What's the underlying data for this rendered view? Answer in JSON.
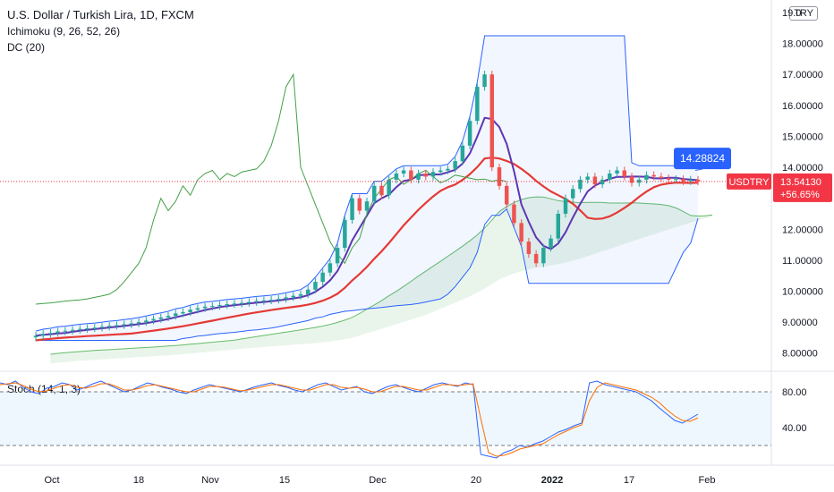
{
  "header": {
    "title": "U.S. Dollar / Turkish Lira, 1D, FXCM",
    "indicator1": "Ichimoku (9, 26, 52, 26)",
    "indicator2": "DC (20)",
    "currency_badge": "TRY"
  },
  "price_badges": {
    "symbol": "USDTRY",
    "last_price": "13.54130",
    "change_pct": "+56.65%",
    "callout_value": "14.28824",
    "symbol_color": "#f23645",
    "callout_color": "#2962ff"
  },
  "stoch": {
    "label": "Stoch (14, 1, 3)"
  },
  "chart_data": [
    {
      "type": "candlestick",
      "title": "U.S. Dollar / Turkish Lira, 1D, FXCM",
      "y_ticks": [
        "19.0",
        "18.00000",
        "17.00000",
        "16.00000",
        "15.00000",
        "14.00000",
        "12.00000",
        "11.00000",
        "10.00000",
        "9.00000",
        "8.00000"
      ],
      "ylim": [
        7.5,
        19.0
      ],
      "x_ticks": [
        "Oct",
        "18",
        "Nov",
        "15",
        "Dec",
        "20",
        "2022",
        "17",
        "Feb"
      ],
      "close": [
        8.56,
        8.62,
        8.65,
        8.7,
        8.72,
        8.75,
        8.78,
        8.8,
        8.82,
        8.85,
        8.88,
        8.9,
        8.93,
        8.96,
        9.0,
        9.05,
        9.1,
        9.15,
        9.2,
        9.28,
        9.32,
        9.4,
        9.45,
        9.5,
        9.52,
        9.55,
        9.58,
        9.6,
        9.62,
        9.65,
        9.68,
        9.7,
        9.72,
        9.75,
        9.8,
        9.85,
        9.9,
        10.05,
        10.3,
        10.6,
        10.9,
        11.4,
        12.3,
        13.0,
        12.6,
        12.9,
        13.4,
        13.1,
        13.6,
        13.8,
        13.9,
        13.6,
        13.8,
        13.7,
        13.85,
        13.9,
        13.95,
        14.2,
        14.7,
        15.5,
        16.6,
        17.0,
        14.0,
        13.4,
        12.8,
        12.2,
        11.6,
        11.2,
        10.9,
        11.4,
        11.7,
        12.5,
        13.0,
        13.3,
        13.6,
        13.7,
        13.45,
        13.6,
        13.8,
        13.9,
        13.7,
        13.5,
        13.6,
        13.75,
        13.7,
        13.65,
        13.6,
        13.62,
        13.55,
        13.6,
        13.54
      ],
      "donchian": {
        "upper": 18.25,
        "lower": 10.25
      },
      "last_price": 13.5413,
      "ichimoku_callout": 14.28824
    },
    {
      "type": "line",
      "title": "Stoch (14, 1, 3)",
      "y_ticks": [
        "80.00",
        "40.00"
      ],
      "bands": [
        20,
        80
      ],
      "ylim": [
        0,
        100
      ],
      "series": [
        {
          "values": [
            90,
            88,
            92,
            85,
            80,
            78,
            84,
            86,
            90,
            88,
            82,
            85,
            89,
            92,
            88,
            84,
            80,
            82,
            86,
            90,
            88,
            85,
            83,
            80,
            78,
            82,
            85,
            88,
            86,
            84,
            82,
            80,
            83,
            86,
            88,
            90,
            87,
            85,
            82,
            80,
            84,
            88,
            90,
            86,
            82,
            84,
            86,
            80,
            78,
            82,
            86,
            88,
            85,
            82,
            80,
            84,
            88,
            90,
            88,
            86,
            90,
            88,
            10,
            8,
            6,
            12,
            15,
            20,
            18,
            22,
            25,
            30,
            35,
            38,
            42,
            45,
            90,
            92,
            88,
            86,
            84,
            82,
            80,
            75,
            70,
            62,
            55,
            48,
            45,
            50,
            55
          ]
        },
        {
          "values": [
            88,
            89,
            90,
            87,
            83,
            80,
            81,
            84,
            87,
            88,
            85,
            84,
            86,
            89,
            89,
            86,
            82,
            82,
            84,
            87,
            88,
            86,
            84,
            82,
            80,
            80,
            83,
            86,
            86,
            85,
            83,
            81,
            82,
            84,
            86,
            88,
            88,
            86,
            84,
            82,
            82,
            85,
            88,
            88,
            85,
            84,
            85,
            83,
            80,
            80,
            83,
            86,
            86,
            84,
            82,
            82,
            85,
            88,
            88,
            87,
            88,
            89,
            50,
            12,
            8,
            9,
            12,
            16,
            18,
            20,
            22,
            27,
            32,
            36,
            40,
            43,
            70,
            85,
            90,
            88,
            86,
            84,
            82,
            78,
            74,
            68,
            60,
            53,
            48,
            47,
            51
          ]
        }
      ]
    }
  ]
}
